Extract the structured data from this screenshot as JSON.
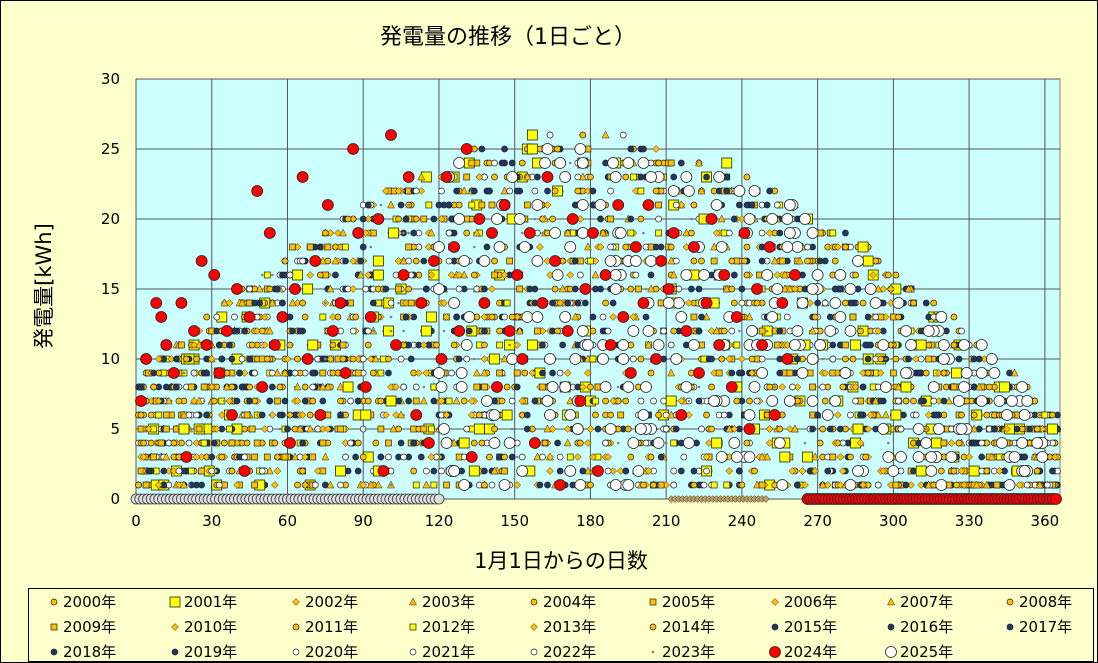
{
  "chart_data": {
    "type": "scatter",
    "title": "発電量の推移（1日ごと）",
    "xlabel": "1月1日からの日数",
    "ylabel": "発電量[kWh]",
    "xlim": [
      0,
      366
    ],
    "ylim": [
      0,
      30
    ],
    "xticks": [
      0,
      30,
      60,
      90,
      120,
      150,
      180,
      210,
      240,
      270,
      300,
      330,
      360
    ],
    "yticks": [
      0,
      5,
      10,
      15,
      20,
      25,
      30
    ],
    "grid": true,
    "plot_background": "#ccffff",
    "legend_position": "bottom",
    "series": [
      {
        "name": "2000年",
        "marker": "circle-s",
        "color": "#ffc000"
      },
      {
        "name": "2001年",
        "marker": "square-l",
        "color": "#ffff00"
      },
      {
        "name": "2002年",
        "marker": "diamond",
        "color": "#ffc000"
      },
      {
        "name": "2003年",
        "marker": "triangle",
        "color": "#ffc000"
      },
      {
        "name": "2004年",
        "marker": "circle-s",
        "color": "#ffc000"
      },
      {
        "name": "2005年",
        "marker": "square-s",
        "color": "#ffc000"
      },
      {
        "name": "2006年",
        "marker": "diamond",
        "color": "#ffc000"
      },
      {
        "name": "2007年",
        "marker": "triangle",
        "color": "#ffc000"
      },
      {
        "name": "2008年",
        "marker": "circle-s",
        "color": "#ffc000"
      },
      {
        "name": "2009年",
        "marker": "square-s",
        "color": "#ffc000"
      },
      {
        "name": "2010年",
        "marker": "diamond",
        "color": "#ffc000"
      },
      {
        "name": "2011年",
        "marker": "circle-s",
        "color": "#ffc000"
      },
      {
        "name": "2012年",
        "marker": "square-s",
        "color": "#ffff00"
      },
      {
        "name": "2013年",
        "marker": "diamond",
        "color": "#ffc000"
      },
      {
        "name": "2014年",
        "marker": "circle-s",
        "color": "#ffc000"
      },
      {
        "name": "2015年",
        "marker": "circle-s",
        "color": "#1f3864"
      },
      {
        "name": "2016年",
        "marker": "circle-s",
        "color": "#1f3864"
      },
      {
        "name": "2017年",
        "marker": "circle-s",
        "color": "#1f3864"
      },
      {
        "name": "2018年",
        "marker": "circle-s",
        "color": "#1f3864"
      },
      {
        "name": "2019年",
        "marker": "circle-s",
        "color": "#1f3864"
      },
      {
        "name": "2020年",
        "marker": "circle-s",
        "color": "#ffffff"
      },
      {
        "name": "2021年",
        "marker": "circle-s",
        "color": "#ffffff"
      },
      {
        "name": "2022年",
        "marker": "circle-s",
        "color": "#ffffff"
      },
      {
        "name": "2023年",
        "marker": "dot",
        "color": "#808080"
      },
      {
        "name": "2024年",
        "marker": "circle-l",
        "color": "#ff0000"
      },
      {
        "name": "2025年",
        "marker": "circle-l",
        "color": "#ffffff"
      }
    ],
    "points_2024": [
      [
        2,
        7
      ],
      [
        4,
        10
      ],
      [
        8,
        14
      ],
      [
        10,
        13
      ],
      [
        12,
        11
      ],
      [
        15,
        9
      ],
      [
        18,
        14
      ],
      [
        20,
        3
      ],
      [
        23,
        12
      ],
      [
        26,
        17
      ],
      [
        28,
        11
      ],
      [
        31,
        16
      ],
      [
        33,
        9
      ],
      [
        36,
        12
      ],
      [
        38,
        6
      ],
      [
        40,
        15
      ],
      [
        43,
        2
      ],
      [
        45,
        13
      ],
      [
        48,
        22
      ],
      [
        50,
        8
      ],
      [
        53,
        19
      ],
      [
        55,
        11
      ],
      [
        58,
        13
      ],
      [
        61,
        4
      ],
      [
        63,
        15
      ],
      [
        66,
        23
      ],
      [
        68,
        10
      ],
      [
        71,
        17
      ],
      [
        73,
        6
      ],
      [
        76,
        21
      ],
      [
        78,
        12
      ],
      [
        81,
        14
      ],
      [
        83,
        9
      ],
      [
        86,
        25
      ],
      [
        88,
        19
      ],
      [
        91,
        8
      ],
      [
        93,
        13
      ],
      [
        96,
        20
      ],
      [
        98,
        2
      ],
      [
        101,
        26
      ],
      [
        103,
        11
      ],
      [
        106,
        16
      ],
      [
        108,
        23
      ],
      [
        111,
        6
      ],
      [
        113,
        14
      ],
      [
        116,
        4
      ],
      [
        118,
        17
      ],
      [
        121,
        10
      ],
      [
        123,
        23
      ],
      [
        126,
        18
      ],
      [
        128,
        12
      ],
      [
        131,
        25
      ],
      [
        133,
        3
      ],
      [
        136,
        20
      ],
      [
        138,
        14
      ],
      [
        141,
        19
      ],
      [
        143,
        8
      ],
      [
        146,
        21
      ],
      [
        148,
        12
      ],
      [
        151,
        16
      ],
      [
        153,
        10
      ],
      [
        156,
        19
      ],
      [
        158,
        4
      ],
      [
        161,
        14
      ],
      [
        163,
        23
      ],
      [
        166,
        17
      ],
      [
        168,
        1
      ],
      [
        171,
        12
      ],
      [
        173,
        20
      ],
      [
        176,
        7
      ],
      [
        178,
        15
      ],
      [
        181,
        19
      ],
      [
        183,
        2
      ],
      [
        186,
        16
      ],
      [
        188,
        11
      ],
      [
        191,
        21
      ],
      [
        193,
        13
      ],
      [
        196,
        9
      ],
      [
        198,
        18
      ],
      [
        201,
        14
      ],
      [
        203,
        21
      ],
      [
        206,
        10
      ],
      [
        208,
        17
      ],
      [
        211,
        15
      ],
      [
        213,
        19
      ],
      [
        216,
        6
      ],
      [
        218,
        12
      ],
      [
        221,
        18
      ],
      [
        223,
        9
      ],
      [
        226,
        14
      ],
      [
        228,
        20
      ],
      [
        231,
        11
      ],
      [
        233,
        16
      ],
      [
        236,
        8
      ],
      [
        238,
        13
      ],
      [
        241,
        19
      ],
      [
        243,
        5
      ],
      [
        246,
        15
      ],
      [
        248,
        11
      ],
      [
        251,
        18
      ],
      [
        253,
        6
      ],
      [
        256,
        14
      ],
      [
        258,
        10
      ],
      [
        261,
        16
      ]
    ],
    "zero_run_2024": [
      266,
      366
    ],
    "zero_run_2025": [
      0,
      120
    ],
    "zero_run_2022": [
      212,
      250
    ]
  }
}
